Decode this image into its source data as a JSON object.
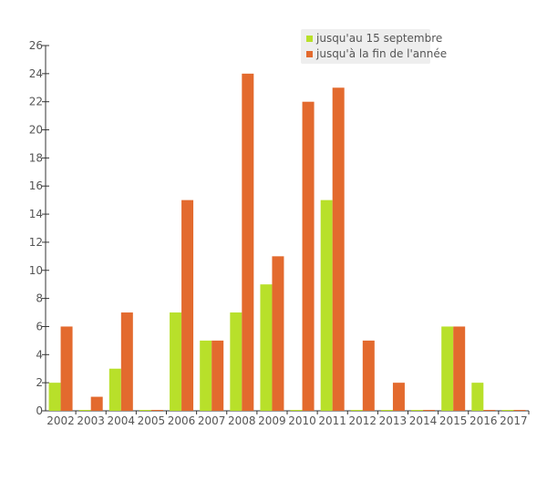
{
  "chart_data": {
    "type": "bar",
    "categories": [
      "2002",
      "2003",
      "2004",
      "2005",
      "2006",
      "2007",
      "2008",
      "2009",
      "2010",
      "2011",
      "2012",
      "2013",
      "2014",
      "2015",
      "2016",
      "2017"
    ],
    "series": [
      {
        "name": "jusqu'au 15 septembre",
        "color": "#b8e02a",
        "values": [
          2,
          0,
          3,
          0,
          7,
          5,
          7,
          9,
          0,
          15,
          0,
          0,
          0,
          6,
          2,
          0
        ]
      },
      {
        "name": "jusqu'à la fin de l'année",
        "color": "#e36a2e",
        "values": [
          6,
          1,
          7,
          0,
          15,
          5,
          24,
          11,
          22,
          23,
          5,
          2,
          0,
          6,
          0,
          0
        ]
      }
    ],
    "ylim": [
      0,
      26
    ],
    "yticks": [
      0,
      2,
      4,
      6,
      8,
      10,
      12,
      14,
      16,
      18,
      20,
      22,
      24,
      26
    ],
    "legend_position": "top-right",
    "grid": false
  }
}
